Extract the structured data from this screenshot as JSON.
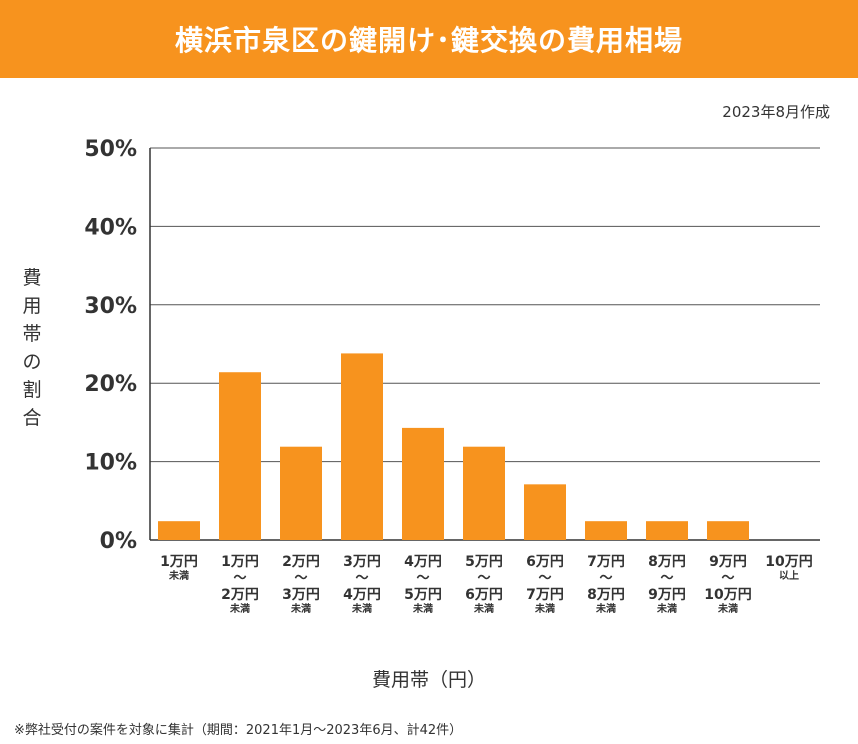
{
  "header": {
    "title": "横浜市泉区の鍵開け･鍵交換の費用相場"
  },
  "date_note": "2023年8月作成",
  "footnote": "※弊社受付の案件を対象に集計（期間：2021年1月～2023年6月、計42件）",
  "colors": {
    "bar": "#f7931e",
    "banner": "#f7931e",
    "grid": "#555555"
  },
  "chart_data": {
    "type": "bar",
    "ylabel": "費用帯の割合",
    "xlabel": "費用帯（円）",
    "ylim": [
      0,
      50
    ],
    "yticks": [
      "0%",
      "10%",
      "20%",
      "30%",
      "40%",
      "50%"
    ],
    "grid": true,
    "categories": [
      [
        "1万円",
        "未満"
      ],
      [
        "1万円",
        "～",
        "2万円",
        "未満"
      ],
      [
        "2万円",
        "～",
        "3万円",
        "未満"
      ],
      [
        "3万円",
        "～",
        "4万円",
        "未満"
      ],
      [
        "4万円",
        "～",
        "5万円",
        "未満"
      ],
      [
        "5万円",
        "～",
        "6万円",
        "未満"
      ],
      [
        "6万円",
        "～",
        "7万円",
        "未満"
      ],
      [
        "7万円",
        "～",
        "8万円",
        "未満"
      ],
      [
        "8万円",
        "～",
        "9万円",
        "未満"
      ],
      [
        "9万円",
        "～",
        "10万円",
        "未満"
      ],
      [
        "10万円",
        "以上"
      ]
    ],
    "values": [
      2.4,
      21.4,
      11.9,
      23.8,
      14.3,
      11.9,
      7.1,
      2.4,
      2.4,
      2.4,
      0
    ]
  }
}
